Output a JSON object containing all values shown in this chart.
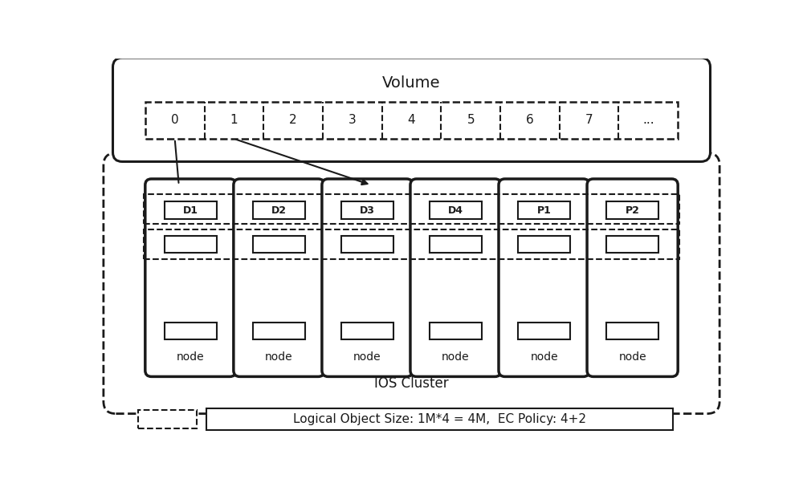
{
  "title": "Volume",
  "volume_blocks": [
    "0",
    "1",
    "2",
    "3",
    "4",
    "5",
    "6",
    "7",
    "..."
  ],
  "node_labels": [
    "D1",
    "D2",
    "D3",
    "D4",
    "P1",
    "P2"
  ],
  "node_text": "node",
  "cluster_label": "IOS Cluster",
  "legend_dashed_label": "Logical Object Size: 1M*4 = 4M,  EC Policy: 4+2",
  "bg_color": "#ffffff",
  "line_color": "#1a1a1a",
  "text_color": "#1a1a1a",
  "figsize": [
    10.0,
    6.07
  ],
  "dpi": 100
}
